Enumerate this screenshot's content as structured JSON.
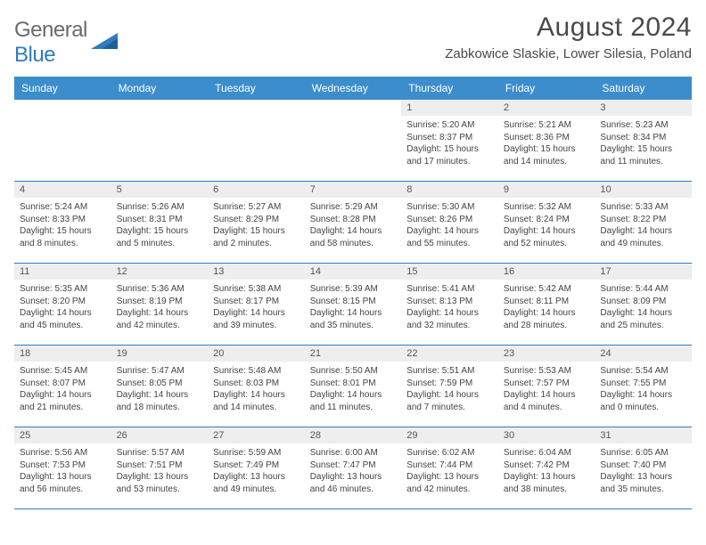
{
  "brand": {
    "part1": "General",
    "part2": "Blue"
  },
  "title": "August 2024",
  "location": "Zabkowice Slaskie, Lower Silesia, Poland",
  "colors": {
    "header_bg": "#3c8dcc",
    "header_text": "#ffffff",
    "rule": "#2f7bbf",
    "daynum_bg": "#eeeeee",
    "text": "#444444",
    "brand_gray": "#6a6a6a",
    "brand_blue": "#2f7bbf"
  },
  "day_labels": [
    "Sunday",
    "Monday",
    "Tuesday",
    "Wednesday",
    "Thursday",
    "Friday",
    "Saturday"
  ],
  "leading_blanks": 4,
  "days": [
    {
      "n": 1,
      "sunrise": "5:20 AM",
      "sunset": "8:37 PM",
      "daylight": "15 hours and 17 minutes."
    },
    {
      "n": 2,
      "sunrise": "5:21 AM",
      "sunset": "8:36 PM",
      "daylight": "15 hours and 14 minutes."
    },
    {
      "n": 3,
      "sunrise": "5:23 AM",
      "sunset": "8:34 PM",
      "daylight": "15 hours and 11 minutes."
    },
    {
      "n": 4,
      "sunrise": "5:24 AM",
      "sunset": "8:33 PM",
      "daylight": "15 hours and 8 minutes."
    },
    {
      "n": 5,
      "sunrise": "5:26 AM",
      "sunset": "8:31 PM",
      "daylight": "15 hours and 5 minutes."
    },
    {
      "n": 6,
      "sunrise": "5:27 AM",
      "sunset": "8:29 PM",
      "daylight": "15 hours and 2 minutes."
    },
    {
      "n": 7,
      "sunrise": "5:29 AM",
      "sunset": "8:28 PM",
      "daylight": "14 hours and 58 minutes."
    },
    {
      "n": 8,
      "sunrise": "5:30 AM",
      "sunset": "8:26 PM",
      "daylight": "14 hours and 55 minutes."
    },
    {
      "n": 9,
      "sunrise": "5:32 AM",
      "sunset": "8:24 PM",
      "daylight": "14 hours and 52 minutes."
    },
    {
      "n": 10,
      "sunrise": "5:33 AM",
      "sunset": "8:22 PM",
      "daylight": "14 hours and 49 minutes."
    },
    {
      "n": 11,
      "sunrise": "5:35 AM",
      "sunset": "8:20 PM",
      "daylight": "14 hours and 45 minutes."
    },
    {
      "n": 12,
      "sunrise": "5:36 AM",
      "sunset": "8:19 PM",
      "daylight": "14 hours and 42 minutes."
    },
    {
      "n": 13,
      "sunrise": "5:38 AM",
      "sunset": "8:17 PM",
      "daylight": "14 hours and 39 minutes."
    },
    {
      "n": 14,
      "sunrise": "5:39 AM",
      "sunset": "8:15 PM",
      "daylight": "14 hours and 35 minutes."
    },
    {
      "n": 15,
      "sunrise": "5:41 AM",
      "sunset": "8:13 PM",
      "daylight": "14 hours and 32 minutes."
    },
    {
      "n": 16,
      "sunrise": "5:42 AM",
      "sunset": "8:11 PM",
      "daylight": "14 hours and 28 minutes."
    },
    {
      "n": 17,
      "sunrise": "5:44 AM",
      "sunset": "8:09 PM",
      "daylight": "14 hours and 25 minutes."
    },
    {
      "n": 18,
      "sunrise": "5:45 AM",
      "sunset": "8:07 PM",
      "daylight": "14 hours and 21 minutes."
    },
    {
      "n": 19,
      "sunrise": "5:47 AM",
      "sunset": "8:05 PM",
      "daylight": "14 hours and 18 minutes."
    },
    {
      "n": 20,
      "sunrise": "5:48 AM",
      "sunset": "8:03 PM",
      "daylight": "14 hours and 14 minutes."
    },
    {
      "n": 21,
      "sunrise": "5:50 AM",
      "sunset": "8:01 PM",
      "daylight": "14 hours and 11 minutes."
    },
    {
      "n": 22,
      "sunrise": "5:51 AM",
      "sunset": "7:59 PM",
      "daylight": "14 hours and 7 minutes."
    },
    {
      "n": 23,
      "sunrise": "5:53 AM",
      "sunset": "7:57 PM",
      "daylight": "14 hours and 4 minutes."
    },
    {
      "n": 24,
      "sunrise": "5:54 AM",
      "sunset": "7:55 PM",
      "daylight": "14 hours and 0 minutes."
    },
    {
      "n": 25,
      "sunrise": "5:56 AM",
      "sunset": "7:53 PM",
      "daylight": "13 hours and 56 minutes."
    },
    {
      "n": 26,
      "sunrise": "5:57 AM",
      "sunset": "7:51 PM",
      "daylight": "13 hours and 53 minutes."
    },
    {
      "n": 27,
      "sunrise": "5:59 AM",
      "sunset": "7:49 PM",
      "daylight": "13 hours and 49 minutes."
    },
    {
      "n": 28,
      "sunrise": "6:00 AM",
      "sunset": "7:47 PM",
      "daylight": "13 hours and 46 minutes."
    },
    {
      "n": 29,
      "sunrise": "6:02 AM",
      "sunset": "7:44 PM",
      "daylight": "13 hours and 42 minutes."
    },
    {
      "n": 30,
      "sunrise": "6:04 AM",
      "sunset": "7:42 PM",
      "daylight": "13 hours and 38 minutes."
    },
    {
      "n": 31,
      "sunrise": "6:05 AM",
      "sunset": "7:40 PM",
      "daylight": "13 hours and 35 minutes."
    }
  ],
  "labels": {
    "sunrise": "Sunrise:",
    "sunset": "Sunset:",
    "daylight": "Daylight:"
  }
}
